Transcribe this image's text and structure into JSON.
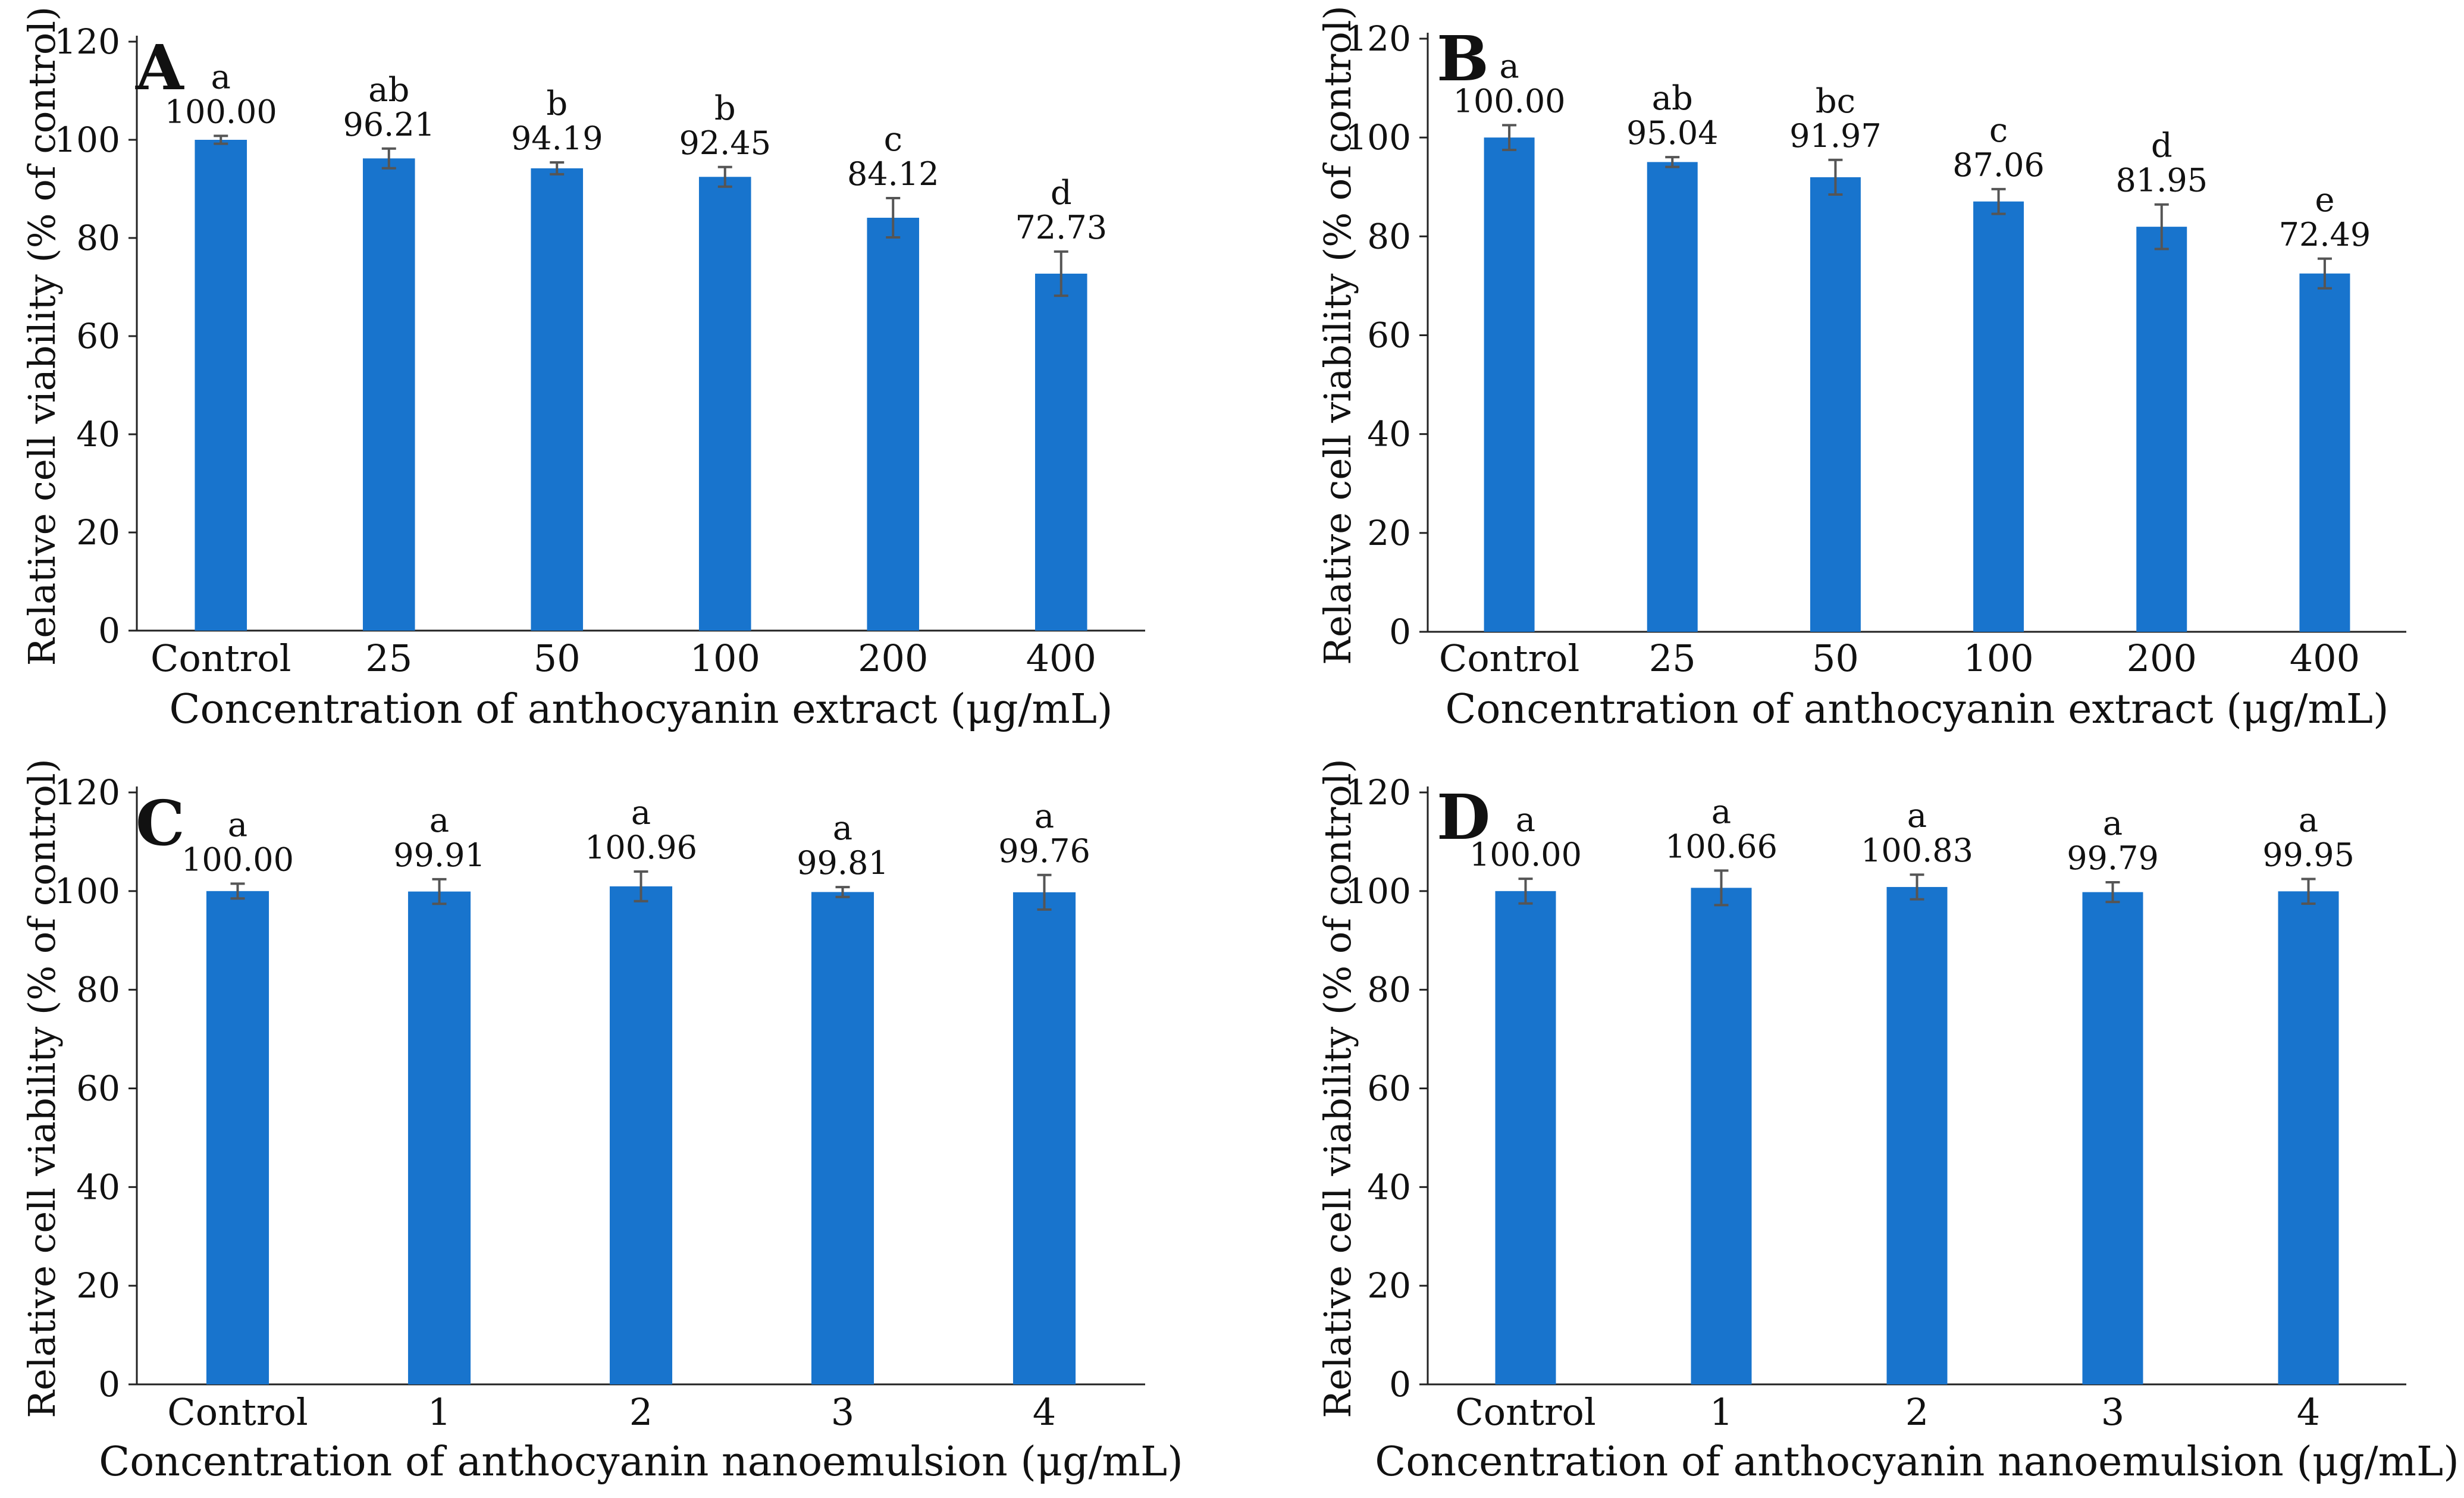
{
  "figure": {
    "colors": {
      "bar": "#1874cd",
      "axis": "#222222",
      "error_bar": "#555555"
    }
  },
  "chart_data": [
    {
      "panel_label": "A",
      "type": "bar",
      "xlabel": "Concentration of anthocyanin extract (μg/mL)",
      "ylabel": "Relative cell viability (% of control)",
      "ylim": [
        0,
        120
      ],
      "yticks": [
        0,
        20,
        40,
        60,
        80,
        100,
        120
      ],
      "ytick_labels": [
        "0",
        "20",
        "40",
        "60",
        "80",
        "100",
        "120"
      ],
      "categories": [
        "Control",
        "25",
        "50",
        "100",
        "200",
        "400"
      ],
      "values": [
        100.0,
        96.21,
        94.19,
        92.45,
        84.12,
        72.73
      ],
      "value_labels": [
        "100.00",
        "96.21",
        "94.19",
        "92.45",
        "84.12",
        "72.73"
      ],
      "errors": [
        0.8,
        2.0,
        1.2,
        2.0,
        4.0,
        4.5
      ],
      "significance": [
        "a",
        "ab",
        "b",
        "b",
        "c",
        "d"
      ]
    },
    {
      "panel_label": "B",
      "type": "bar",
      "xlabel": "Concentration of anthocyanin extract (μg/mL)",
      "ylabel": "Relative cell viability (% of control)",
      "ylim": [
        0,
        120
      ],
      "yticks": [
        0,
        20,
        40,
        60,
        80,
        100,
        120
      ],
      "ytick_labels": [
        "0",
        "20",
        "40",
        "60",
        "80",
        "100",
        "120"
      ],
      "categories": [
        "Control",
        "25",
        "50",
        "100",
        "200",
        "400"
      ],
      "values": [
        100.0,
        95.04,
        91.97,
        87.06,
        81.95,
        72.49
      ],
      "value_labels": [
        "100.00",
        "95.04",
        "91.97",
        "87.06",
        "81.95",
        "72.49"
      ],
      "errors": [
        2.5,
        1.0,
        3.5,
        2.5,
        4.5,
        3.0
      ],
      "significance": [
        "a",
        "ab",
        "bc",
        "c",
        "d",
        "e"
      ]
    },
    {
      "panel_label": "C",
      "type": "bar",
      "xlabel": "Concentration of anthocyanin nanoemulsion (μg/mL)",
      "ylabel": "Relative cell viability (% of control)",
      "ylim": [
        0,
        120
      ],
      "yticks": [
        0,
        20,
        40,
        60,
        80,
        100,
        120
      ],
      "ytick_labels": [
        "0",
        "20",
        "40",
        "60",
        "80",
        "100",
        "120"
      ],
      "categories": [
        "Control",
        "1",
        "2",
        "3",
        "4"
      ],
      "values": [
        100.0,
        99.91,
        100.96,
        99.81,
        99.76
      ],
      "value_labels": [
        "100.00",
        "99.91",
        "100.96",
        "99.81",
        "99.76"
      ],
      "errors": [
        1.5,
        2.5,
        3.0,
        1.0,
        3.5
      ],
      "significance": [
        "a",
        "a",
        "a",
        "a",
        "a"
      ]
    },
    {
      "panel_label": "D",
      "type": "bar",
      "xlabel": "Concentration of anthocyanin nanoemulsion (μg/mL)",
      "ylabel": "Relative cell viability (% of control)",
      "ylim": [
        0,
        120
      ],
      "yticks": [
        0,
        20,
        40,
        60,
        80,
        100,
        120
      ],
      "ytick_labels": [
        "0",
        "20",
        "40",
        "60",
        "80",
        "100",
        "120"
      ],
      "categories": [
        "Control",
        "1",
        "2",
        "3",
        "4"
      ],
      "values": [
        100.0,
        100.66,
        100.83,
        99.79,
        99.95
      ],
      "value_labels": [
        "100.00",
        "100.66",
        "100.83",
        "99.79",
        "99.95"
      ],
      "errors": [
        2.5,
        3.5,
        2.5,
        2.0,
        2.5
      ],
      "significance": [
        "a",
        "a",
        "a",
        "a",
        "a"
      ]
    }
  ]
}
